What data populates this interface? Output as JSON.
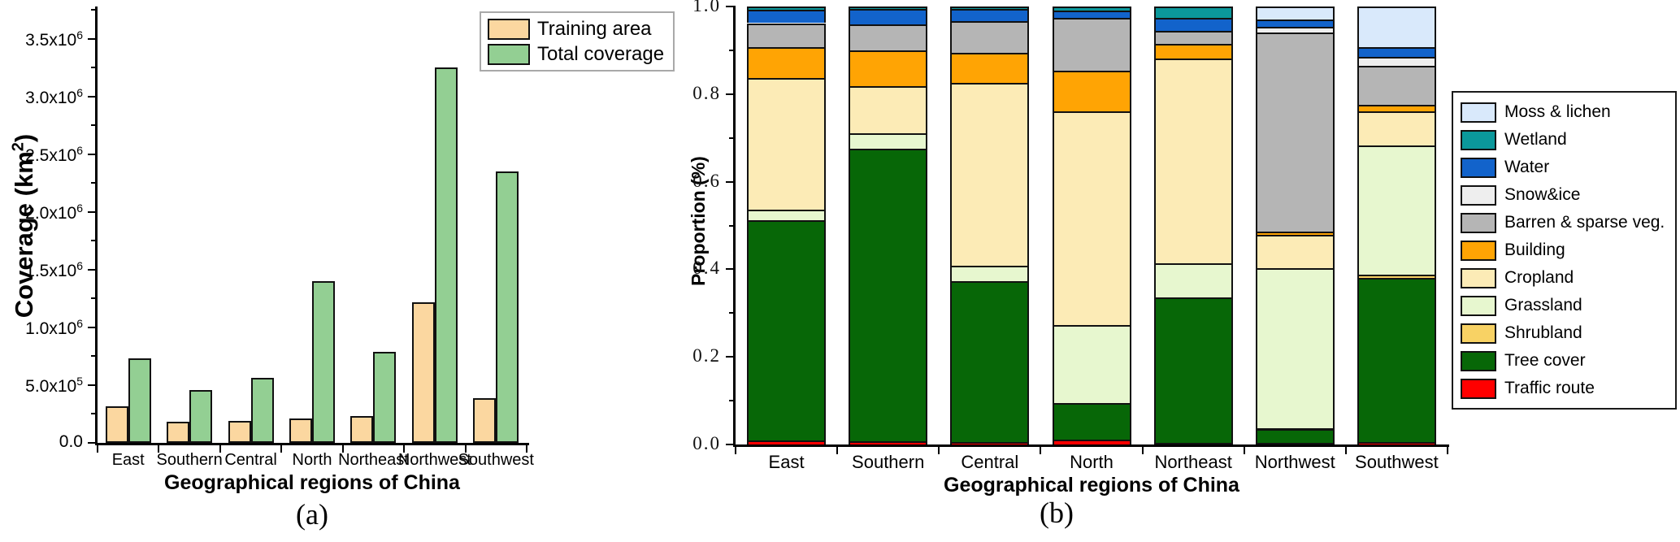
{
  "chart_data": [
    {
      "type": "bar",
      "panel": "a",
      "caption": "(a)",
      "xlabel": "Geographical regions of China",
      "ylabel": "Coverage (km2)",
      "y_axis": {
        "title_prefix": "Coverage (km",
        "title_sup": "2",
        "title_suffix": ")",
        "ticks": [
          {
            "m": "0.0",
            "e": ""
          },
          {
            "m": "5.0x10",
            "e": "5"
          },
          {
            "m": "1.0x10",
            "e": "6"
          },
          {
            "m": "1.5x10",
            "e": "6"
          },
          {
            "m": "2.0x10",
            "e": "6"
          },
          {
            "m": "2.5x10",
            "e": "6"
          },
          {
            "m": "3.0x10",
            "e": "6"
          },
          {
            "m": "3.5x10",
            "e": "6"
          }
        ],
        "major_step": 500000,
        "minor_step": 250000,
        "max": 3780000
      },
      "ylim": [
        0,
        3780000
      ],
      "grid": false,
      "legend_position": "top-right-inside",
      "categories": [
        "East",
        "Southern",
        "Central",
        "North",
        "Northeast",
        "Northwest",
        "Southwest"
      ],
      "series": [
        {
          "name": "Training area",
          "color": "#FBD7A0",
          "values": [
            320000,
            180000,
            190000,
            210000,
            230000,
            1220000,
            390000
          ]
        },
        {
          "name": "Total coverage",
          "color": "#93CF93",
          "values": [
            735000,
            460000,
            565000,
            1400000,
            790000,
            3250000,
            2350000
          ]
        }
      ]
    },
    {
      "type": "stacked-bar",
      "panel": "b",
      "caption": "(b)",
      "xlabel": "Geographical regions of China",
      "ylabel": "Proportion (%)",
      "y_axis": {
        "ticks": [
          "0.0",
          "0.2",
          "0.4",
          "0.6",
          "0.8",
          "1.0"
        ],
        "major_step": 0.2,
        "minor_step": 0.1,
        "max": 1.0
      },
      "ylim": [
        0,
        1
      ],
      "grid": false,
      "legend_position": "right-outside",
      "categories": [
        "East",
        "Southern",
        "Central",
        "North",
        "Northeast",
        "Northwest",
        "Southwest"
      ],
      "series": [
        {
          "name": "Traffic route",
          "color": "#FF0000",
          "values": [
            0.01,
            0.007,
            0.006,
            0.012,
            0.003,
            0.003,
            0.005
          ]
        },
        {
          "name": "Tree cover",
          "color": "#076707",
          "values": [
            0.503,
            0.668,
            0.367,
            0.083,
            0.332,
            0.033,
            0.375
          ]
        },
        {
          "name": "Shrubland",
          "color": "#F8D264",
          "values": [
            0.0,
            0.0,
            0.0,
            0.0,
            0.0,
            0.002,
            0.008
          ]
        },
        {
          "name": "Grassland",
          "color": "#E7F7CF",
          "values": [
            0.023,
            0.035,
            0.035,
            0.178,
            0.078,
            0.365,
            0.294
          ]
        },
        {
          "name": "Cropland",
          "color": "#FCEBB6",
          "values": [
            0.3,
            0.108,
            0.418,
            0.487,
            0.469,
            0.076,
            0.078
          ]
        },
        {
          "name": "Building",
          "color": "#FFA404",
          "values": [
            0.072,
            0.082,
            0.068,
            0.093,
            0.033,
            0.008,
            0.015
          ]
        },
        {
          "name": "Barren & sparse veg.",
          "color": "#B5B5B5",
          "values": [
            0.054,
            0.06,
            0.073,
            0.121,
            0.029,
            0.454,
            0.09
          ]
        },
        {
          "name": "Snow&ice",
          "color": "#EEEEEE",
          "values": [
            0.0,
            0.0,
            0.0,
            0.0,
            0.0,
            0.013,
            0.02
          ]
        },
        {
          "name": "Water",
          "color": "#1263CB",
          "values": [
            0.031,
            0.035,
            0.028,
            0.016,
            0.03,
            0.016,
            0.023
          ]
        },
        {
          "name": "Wetland",
          "color": "#0B989B",
          "values": [
            0.007,
            0.005,
            0.005,
            0.01,
            0.026,
            0.0,
            0.0
          ]
        },
        {
          "name": "Moss & lichen",
          "color": "#D9E9FB",
          "values": [
            0.0,
            0.0,
            0.0,
            0.0,
            0.0,
            0.03,
            0.092
          ]
        }
      ]
    }
  ]
}
